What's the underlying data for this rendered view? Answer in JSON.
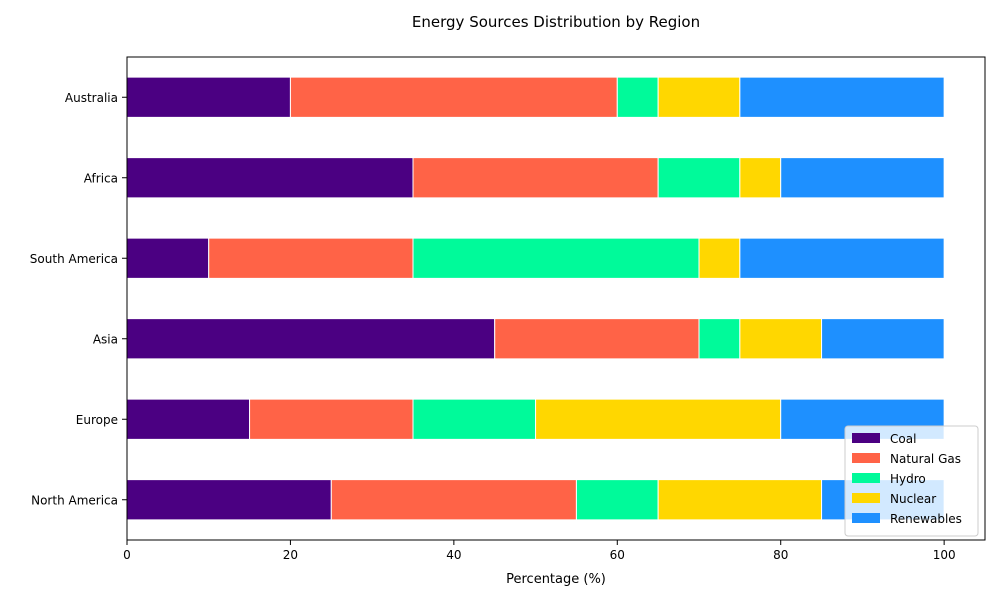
{
  "chart_data": {
    "type": "bar",
    "orientation": "horizontal",
    "stacked": true,
    "title": "Energy Sources Distribution by Region",
    "xlabel": "Percentage (%)",
    "ylabel": "",
    "xlim": [
      0,
      105
    ],
    "xticks": [
      0,
      20,
      40,
      60,
      80,
      100
    ],
    "grid": false,
    "legend_position": "lower-right",
    "categories": [
      "North America",
      "Europe",
      "Asia",
      "South America",
      "Africa",
      "Australia"
    ],
    "series": [
      {
        "name": "Coal",
        "color": "#4b0082",
        "values": [
          25,
          15,
          45,
          10,
          35,
          20
        ]
      },
      {
        "name": "Natural Gas",
        "color": "#ff6347",
        "values": [
          30,
          20,
          25,
          25,
          30,
          40
        ]
      },
      {
        "name": "Hydro",
        "color": "#00fa9a",
        "values": [
          10,
          15,
          5,
          35,
          10,
          5
        ]
      },
      {
        "name": "Nuclear",
        "color": "#ffd700",
        "values": [
          20,
          30,
          10,
          5,
          5,
          10
        ]
      },
      {
        "name": "Renewables",
        "color": "#1e90ff",
        "values": [
          15,
          20,
          15,
          25,
          20,
          25
        ]
      }
    ]
  }
}
